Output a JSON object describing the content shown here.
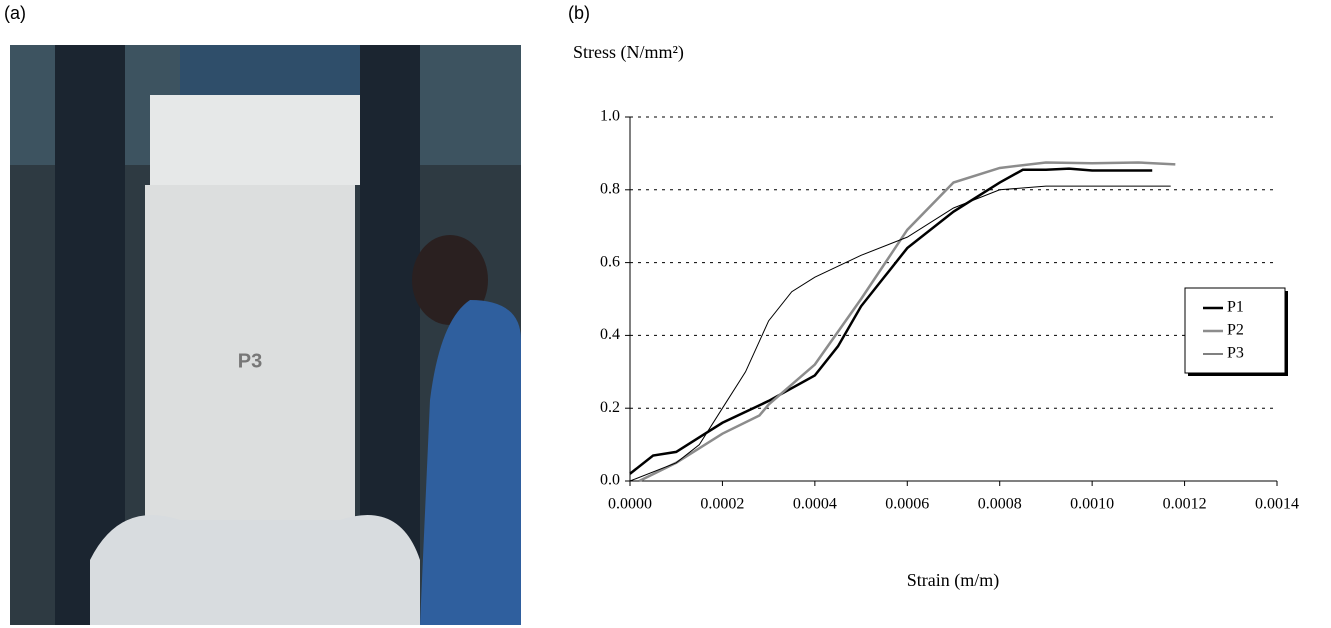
{
  "panel_labels": [
    "(a)",
    "(b)"
  ],
  "photo": {
    "label": "P3"
  },
  "chart_data": {
    "type": "line",
    "ylabel": "Stress (N/mm²)",
    "xlabel": "Strain (m/m)",
    "xlim": [
      0,
      0.0014
    ],
    "xticks": [
      {
        "value": 0,
        "label": "0.0000"
      },
      {
        "value": 0.0002,
        "label": "0.0002"
      },
      {
        "value": 0.0004,
        "label": "0.0004"
      },
      {
        "value": 0.0006,
        "label": "0.0006"
      },
      {
        "value": 0.0008,
        "label": "0.0008"
      },
      {
        "value": 0.001,
        "label": "0.0010"
      },
      {
        "value": 0.0012,
        "label": "0.0012"
      },
      {
        "value": 0.0014,
        "label": "0.0014"
      }
    ],
    "ylim": [
      0,
      1
    ],
    "yticks": [
      {
        "value": 0,
        "label": "0.0"
      },
      {
        "value": 0.2,
        "label": "0.2"
      },
      {
        "value": 0.4,
        "label": "0.4"
      },
      {
        "value": 0.6,
        "label": "0.6"
      },
      {
        "value": 0.8,
        "label": "0.8"
      },
      {
        "value": 1,
        "label": "1.0"
      }
    ],
    "grid": true,
    "legend": "right",
    "series": [
      {
        "name": "P1",
        "color": "#000000",
        "width": 2.5,
        "x": [
          0,
          5e-05,
          0.0001,
          0.00015,
          0.0002,
          0.0003,
          0.0004,
          0.00045,
          0.0005,
          0.00055,
          0.0006,
          0.0007,
          0.0008,
          0.00085,
          0.0009,
          0.00095,
          0.001,
          0.00113
        ],
        "values": [
          0.02,
          0.07,
          0.08,
          0.12,
          0.16,
          0.22,
          0.29,
          0.37,
          0.48,
          0.56,
          0.64,
          0.74,
          0.82,
          0.855,
          0.855,
          0.858,
          0.853,
          0.853
        ]
      },
      {
        "name": "P2",
        "color": "#8c8c8c",
        "width": 2.5,
        "x": [
          2e-05,
          0.0001,
          0.0002,
          0.00028,
          0.0003,
          0.0004,
          0.0005,
          0.0006,
          0.0007,
          0.0008,
          0.0009,
          0.001,
          0.0011,
          0.00118
        ],
        "values": [
          0,
          0.05,
          0.13,
          0.18,
          0.21,
          0.32,
          0.5,
          0.69,
          0.82,
          0.86,
          0.875,
          0.873,
          0.875,
          0.87
        ]
      },
      {
        "name": "P3",
        "color": "#000000",
        "width": 1,
        "x": [
          0,
          0.0001,
          0.00015,
          0.0002,
          0.00025,
          0.0003,
          0.00035,
          0.0004,
          0.0005,
          0.0006,
          0.0007,
          0.0008,
          0.0009,
          0.001,
          0.00117
        ],
        "values": [
          0,
          0.05,
          0.1,
          0.2,
          0.3,
          0.44,
          0.52,
          0.56,
          0.62,
          0.67,
          0.75,
          0.8,
          0.81,
          0.81,
          0.81
        ]
      }
    ]
  }
}
